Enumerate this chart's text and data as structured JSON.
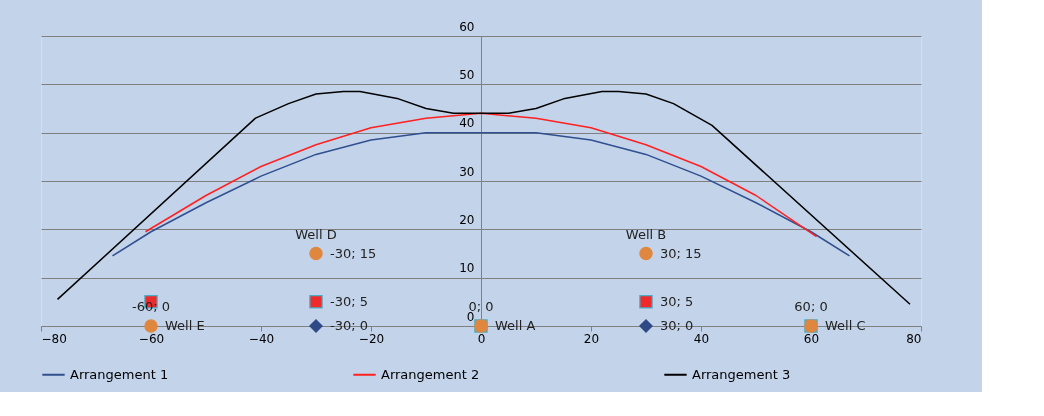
{
  "chart_data": {
    "type": "line",
    "xlim": [
      -80,
      80
    ],
    "xticks": [
      -80,
      -60,
      -40,
      -20,
      0,
      20,
      40,
      60,
      80
    ],
    "ylim": [
      0,
      60
    ],
    "yticks": [
      0,
      10,
      20,
      30,
      40,
      50,
      60
    ],
    "grid": "y",
    "legend": "bottom",
    "marker": "none",
    "line_style": "solid",
    "series": [
      {
        "name": "Arrangement 1",
        "color": "#2f4f8f",
        "x": [
          -67,
          -60,
          -50,
          -40,
          -30,
          -20,
          -10,
          0,
          10,
          20,
          30,
          40,
          50,
          60,
          67
        ],
        "values": [
          14.5,
          19.5,
          25.5,
          31,
          35.5,
          38.5,
          40,
          40,
          40,
          38.5,
          35.5,
          31,
          25.5,
          19.5,
          14.5
        ]
      },
      {
        "name": "Arrangement 2",
        "color": "#ff2020",
        "x": [
          -61,
          -50,
          -40,
          -30,
          -20,
          -10,
          0,
          10,
          20,
          30,
          40,
          50,
          61
        ],
        "values": [
          19.5,
          27,
          33,
          37.5,
          41,
          43,
          44,
          43,
          41,
          37.5,
          33,
          27,
          18.5
        ]
      },
      {
        "name": "Arrangement 3",
        "color": "#000000",
        "x": [
          -77,
          -41,
          -35,
          -30,
          -25,
          -22,
          -15,
          -10,
          -5,
          0,
          5,
          10,
          15,
          22,
          25,
          30,
          35,
          42,
          78
        ],
        "values": [
          5.5,
          43,
          46,
          48,
          48.5,
          48.5,
          47,
          45,
          44,
          44,
          44,
          45,
          47,
          48.5,
          48.5,
          48,
          46,
          41.5,
          4.5
        ]
      },
      {
        "type": "scatter",
        "marker": "square",
        "color": "#e0873f",
        "x": [
          0,
          60
        ],
        "values": [
          0,
          0
        ]
      },
      {
        "type": "scatter",
        "marker": "circle",
        "color": "#e0873f",
        "x": [
          -60,
          -30,
          0,
          30,
          60
        ],
        "values": [
          0,
          15,
          0,
          15,
          0
        ]
      },
      {
        "type": "scatter",
        "marker": "square",
        "color": "#ee2a2a",
        "x": [
          -60,
          -30,
          30
        ],
        "values": [
          5,
          5,
          5
        ]
      },
      {
        "type": "scatter",
        "marker": "diamond",
        "color": "#2e4a86",
        "x": [
          -30,
          30
        ],
        "values": [
          0,
          0
        ]
      }
    ],
    "annotations": [
      {
        "text": "Well E",
        "x": -60,
        "y": 0
      },
      {
        "text": "-60; 0",
        "x": -60,
        "y": 0
      },
      {
        "text": "-30; 0",
        "x": -30,
        "y": 0
      },
      {
        "text": "-30; 5",
        "x": -30,
        "y": 5
      },
      {
        "text": "-30; 15",
        "x": -30,
        "y": 15
      },
      {
        "text": "Well D",
        "x": -30,
        "y": 15
      },
      {
        "text": "Well A",
        "x": 0,
        "y": 0
      },
      {
        "text": "0; 0",
        "x": 0,
        "y": 0
      },
      {
        "text": "30; 15",
        "x": 30,
        "y": 15
      },
      {
        "text": "Well B",
        "x": 30,
        "y": 15
      },
      {
        "text": "30; 5",
        "x": 30,
        "y": 5
      },
      {
        "text": "30; 0",
        "x": 30,
        "y": 0
      },
      {
        "text": "Well C",
        "x": 60,
        "y": 0
      },
      {
        "text": "60; 0",
        "x": 60,
        "y": 0
      }
    ]
  }
}
